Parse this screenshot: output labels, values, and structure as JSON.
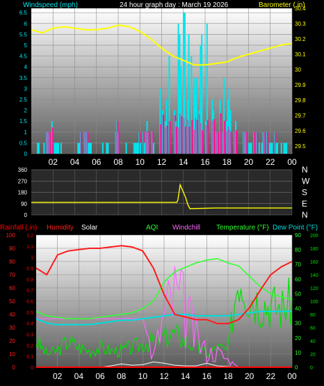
{
  "header": {
    "wind_label": "Windspeed (mph)",
    "title": "24 hour graph day : March 19 2026",
    "baro_label": "Barometer (.in)"
  },
  "bottom_header": {
    "rainfall": "Rainfall (.in)",
    "humidity": "Humidity",
    "solar": "Solar",
    "aqi": "AQI",
    "windchill": "Windchill",
    "temperature": "Temperature (°F)",
    "dewpoint": "Dew Point (°F)"
  },
  "colors": {
    "wind_speed": "#00e5ee",
    "wind_gust_fill": "#ff1493",
    "barometer": "#ffff00",
    "direction": "#ffff00",
    "rain": "#ff0000",
    "humidity": "#ff1a1a",
    "solar": "#ffffff",
    "aqi": "#00e000",
    "windchill": "#ff66ff",
    "temperature": "#33ff33",
    "dewpoint": "#00dddd"
  },
  "x_ticks": [
    "02",
    "04",
    "06",
    "08",
    "10",
    "12",
    "14",
    "16",
    "18",
    "20",
    "22",
    "00"
  ],
  "direction_letters": [
    "N",
    "W",
    "S",
    "E",
    "N"
  ],
  "chart_data": [
    {
      "type": "line",
      "title": "24 hour graph day : March 19 2026",
      "x": [
        0,
        1,
        2,
        3,
        4,
        5,
        6,
        7,
        8,
        9,
        10,
        11,
        12,
        13,
        14,
        15,
        16,
        17,
        18,
        19,
        20,
        21,
        22,
        23,
        24
      ],
      "series": [
        {
          "name": "Windspeed (mph)",
          "axis": "left",
          "values": [
            0,
            0.5,
            1,
            0,
            0,
            1,
            0,
            0.5,
            1,
            0,
            0.5,
            1,
            2,
            3.5,
            4.5,
            3,
            3.5,
            3,
            2,
            1,
            0.5,
            1,
            0.5,
            1,
            0
          ]
        },
        {
          "name": "Barometer (.in)",
          "axis": "right",
          "values": [
            30.26,
            30.24,
            30.27,
            30.28,
            30.27,
            30.26,
            30.26,
            30.27,
            30.29,
            30.28,
            30.25,
            30.2,
            30.14,
            30.09,
            30.06,
            30.03,
            30.03,
            30.04,
            30.05,
            30.08,
            30.1,
            30.12,
            30.14,
            30.16,
            30.17
          ]
        }
      ],
      "ylim_left": [
        0,
        6.7
      ],
      "yticks_left": [
        "0",
        "0.5",
        "1",
        "1.5",
        "2",
        "2.5",
        "3",
        "3.5",
        "4",
        "4.5",
        "5",
        "5.5",
        "6",
        "6.5"
      ],
      "ylim_right": [
        29.45,
        30.4
      ],
      "yticks_right": [
        "29.5",
        "29.6",
        "29.7",
        "29.8",
        "29.9",
        "30",
        "30.1",
        "30.2",
        "30.3",
        "30.4"
      ],
      "xticks": [
        "02",
        "04",
        "06",
        "08",
        "10",
        "12",
        "14",
        "16",
        "18",
        "20",
        "22",
        "00"
      ]
    },
    {
      "type": "line",
      "series": [
        {
          "name": "",
          "values_x": [
            0,
            13.4,
            13.5,
            13.7,
            14.0,
            14.2,
            14.4,
            14.6,
            17.0,
            24
          ],
          "values": [
            100,
            100,
            120,
            240,
            180,
            140,
            85,
            50,
            55,
            55
          ]
        }
      ],
      "ylim": [
        0,
        360
      ],
      "yticks": [
        "0",
        "90",
        "180",
        "270",
        "360"
      ],
      "direction_labels": [
        "N",
        "W",
        "S",
        "E",
        "N"
      ]
    },
    {
      "type": "line",
      "x": [
        0,
        1,
        2,
        3,
        4,
        5,
        6,
        7,
        8,
        9,
        10,
        11,
        12,
        13,
        14,
        15,
        16,
        17,
        18,
        19,
        20,
        21,
        22,
        23,
        24
      ],
      "series": [
        {
          "name": "Humidity",
          "axis": "left",
          "values": [
            75,
            70,
            85,
            88,
            89,
            90,
            90,
            91,
            92,
            91,
            88,
            75,
            55,
            40,
            38,
            36,
            36,
            33,
            33,
            36,
            45,
            58,
            70,
            76,
            80
          ]
        },
        {
          "name": "Temperature (°F)",
          "axis": "right",
          "values": [
            38,
            35,
            34,
            33,
            33,
            33,
            34,
            35,
            36,
            37,
            40,
            45,
            58,
            65,
            68,
            71,
            73,
            74,
            71,
            69,
            62,
            55,
            50,
            48,
            46
          ]
        },
        {
          "name": "Dew Point (°F)",
          "axis": "right",
          "values": [
            33,
            30,
            29,
            29,
            29,
            29,
            30,
            31,
            32,
            32,
            33,
            34,
            35,
            36,
            36,
            35,
            35,
            35,
            35,
            36,
            37,
            38,
            38,
            38,
            38
          ]
        },
        {
          "name": "AQI",
          "axis": "right2",
          "values": [
            40,
            20,
            25,
            40,
            30,
            25,
            30,
            25,
            25,
            30,
            35,
            40,
            45,
            50,
            40,
            30,
            20,
            30,
            25,
            150,
            110,
            100,
            95,
            90,
            100
          ]
        },
        {
          "name": "Windchill",
          "axis": "right",
          "values": [
            33,
            33,
            33,
            33,
            33,
            33,
            33,
            33,
            33,
            33,
            33,
            7,
            35,
            48,
            38,
            20,
            10,
            10,
            5,
            0,
            0,
            0,
            0,
            0,
            0
          ]
        },
        {
          "name": "Solar",
          "axis": "right2",
          "values": [
            0,
            0,
            0,
            0,
            0,
            0,
            0,
            2,
            5,
            3,
            4,
            8,
            6,
            3,
            2,
            2,
            6,
            2,
            1,
            0,
            0,
            0,
            0,
            0,
            0
          ]
        },
        {
          "name": "Rainfall (.in)",
          "axis": "left2",
          "values": [
            0,
            0,
            0,
            0,
            0,
            0,
            0,
            0,
            0,
            0,
            0,
            0,
            0,
            0,
            0,
            0,
            0,
            0,
            0,
            0,
            0,
            0,
            0,
            0,
            0
          ]
        }
      ],
      "ylim_left": [
        0,
        100
      ],
      "yticks_left": [
        "0",
        "10",
        "20",
        "30",
        "40",
        "50",
        "60",
        "70",
        "80",
        "90",
        "100"
      ],
      "ylim_left2": [
        0,
        1.2
      ],
      "yticks_left2": [
        "0",
        "0.1",
        "0.2",
        "0.3",
        "0.4",
        "0.5",
        "0.6",
        "0.7",
        "0.8",
        "0.9",
        "1",
        "1.1",
        "1.2"
      ],
      "ylim_right": [
        0,
        90
      ],
      "yticks_right": [
        "0",
        "10",
        "20",
        "30",
        "40",
        "50",
        "60",
        "70",
        "80",
        "90"
      ],
      "ylim_right2": [
        0,
        200
      ],
      "yticks_right2": [
        "0",
        "20",
        "40",
        "60",
        "80",
        "100",
        "120",
        "140",
        "160",
        "180",
        "200"
      ],
      "xticks": [
        "02",
        "04",
        "06",
        "08",
        "10",
        "12",
        "14",
        "16",
        "18",
        "20",
        "22",
        "00"
      ]
    }
  ]
}
